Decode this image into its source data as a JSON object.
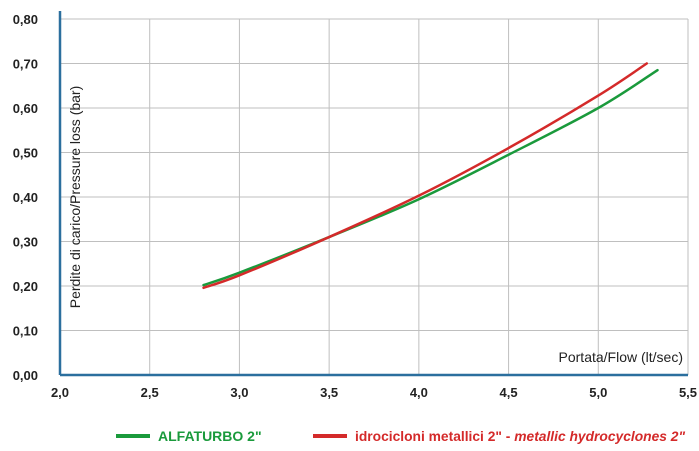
{
  "chart_data": {
    "type": "line",
    "xlabel": "Portata/Flow (lt/sec)",
    "ylabel": "Perdite di carico/Pressure loss (bar)",
    "xlim": [
      2.0,
      5.5
    ],
    "ylim": [
      0.0,
      0.8
    ],
    "x_ticks": [
      "2,0",
      "2,5",
      "3,0",
      "3,5",
      "4,0",
      "4,5",
      "5,0",
      "5,5"
    ],
    "y_ticks": [
      "0,00",
      "0,10",
      "0,20",
      "0,30",
      "0,40",
      "0,50",
      "0,60",
      "0,70",
      "0,80"
    ],
    "grid": true,
    "legend_position": "bottom",
    "series": [
      {
        "name": "ALFATURBO 2\"",
        "color": "#1a9a3c",
        "x": [
          2.8,
          3.0,
          3.5,
          4.0,
          4.5,
          5.0,
          5.33
        ],
        "y": [
          0.202,
          0.23,
          0.31,
          0.395,
          0.495,
          0.6,
          0.685
        ]
      },
      {
        "name": "idrocicloni metallici 2\" - metallic hydrocyclones 2\"",
        "name_regular": "idrocicloni metallici 2\" - ",
        "name_italic": "metallic hydrocyclones 2\"",
        "color": "#d42a2a",
        "x": [
          2.8,
          3.0,
          3.5,
          4.0,
          4.5,
          5.0,
          5.27
        ],
        "y": [
          0.196,
          0.224,
          0.31,
          0.403,
          0.51,
          0.628,
          0.7
        ]
      }
    ],
    "colors": {
      "axis": "#2b6f9e",
      "grid": "#bfbfbf",
      "text": "#222222"
    }
  }
}
